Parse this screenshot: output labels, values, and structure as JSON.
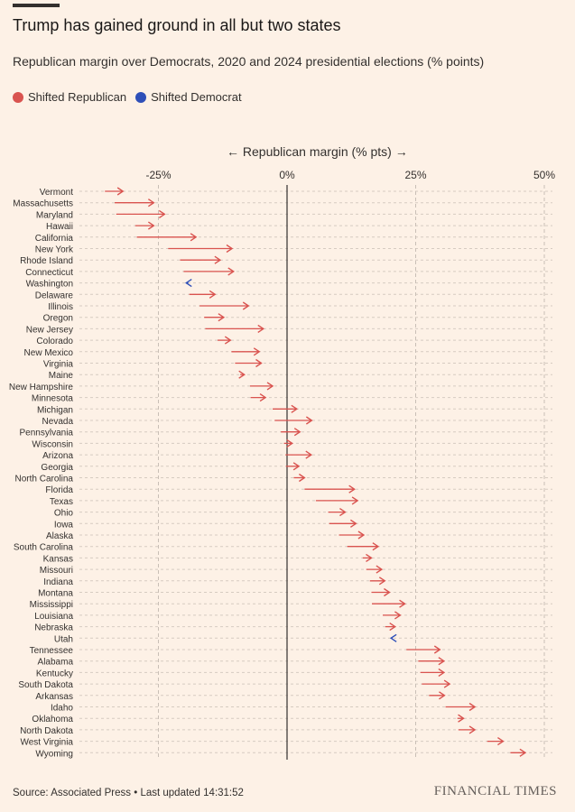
{
  "header": {
    "title": "Trump has gained ground in all but two states",
    "subtitle": "Republican margin over Democrats, 2020 and 2024 presidential elections (% points)"
  },
  "legend": {
    "items": [
      {
        "label": "Shifted Republican",
        "color": "#d9534f"
      },
      {
        "label": "Shifted Democrat",
        "color": "#2e4fb8"
      }
    ]
  },
  "footer": {
    "source": "Source: Associated Press • Last updated 14:31:52",
    "brand": "FINANCIAL TIMES"
  },
  "chart_data": {
    "type": "arrow",
    "axis_title": "← Republican margin (% pts) →",
    "xlim": [
      -32,
      51
    ],
    "ticks": [
      -25,
      0,
      25,
      50
    ],
    "tick_labels": [
      "-25%",
      "0%",
      "25%",
      "50%"
    ],
    "grid": true,
    "colors": {
      "republican": "#d9534f",
      "democrat": "#2e4fb8"
    },
    "series_names": [
      "2020",
      "2024"
    ],
    "states": [
      {
        "name": "Vermont",
        "y2020": -35.4,
        "y2024": -31.9
      },
      {
        "name": "Massachusetts",
        "y2020": -33.5,
        "y2024": -25.9
      },
      {
        "name": "Maryland",
        "y2020": -33.2,
        "y2024": -23.8
      },
      {
        "name": "Hawaii",
        "y2020": -29.5,
        "y2024": -25.9
      },
      {
        "name": "California",
        "y2020": -29.2,
        "y2024": -17.7
      },
      {
        "name": "New York",
        "y2020": -23.1,
        "y2024": -10.7
      },
      {
        "name": "Rhode Island",
        "y2020": -20.8,
        "y2024": -13.0
      },
      {
        "name": "Connecticut",
        "y2020": -20.1,
        "y2024": -10.4
      },
      {
        "name": "Washington",
        "y2020": -19.2,
        "y2024": -19.6
      },
      {
        "name": "Delaware",
        "y2020": -19.0,
        "y2024": -14.0
      },
      {
        "name": "Illinois",
        "y2020": -17.0,
        "y2024": -7.5
      },
      {
        "name": "Oregon",
        "y2020": -16.1,
        "y2024": -12.3
      },
      {
        "name": "New Jersey",
        "y2020": -15.9,
        "y2024": -4.6
      },
      {
        "name": "Colorado",
        "y2020": -13.5,
        "y2024": -11.0
      },
      {
        "name": "New Mexico",
        "y2020": -10.8,
        "y2024": -5.4
      },
      {
        "name": "Virginia",
        "y2020": -10.1,
        "y2024": -5.0
      },
      {
        "name": "Maine",
        "y2020": -9.1,
        "y2024": -8.3
      },
      {
        "name": "New Hampshire",
        "y2020": -7.2,
        "y2024": -2.8
      },
      {
        "name": "Minnesota",
        "y2020": -7.1,
        "y2024": -4.2
      },
      {
        "name": "Michigan",
        "y2020": -2.8,
        "y2024": 1.9
      },
      {
        "name": "Nevada",
        "y2020": -2.4,
        "y2024": 4.8
      },
      {
        "name": "Pennsylvania",
        "y2020": -1.2,
        "y2024": 2.5
      },
      {
        "name": "Wisconsin",
        "y2020": -0.6,
        "y2024": 1.0
      },
      {
        "name": "Arizona",
        "y2020": -0.3,
        "y2024": 4.7
      },
      {
        "name": "Georgia",
        "y2020": -0.2,
        "y2024": 2.3
      },
      {
        "name": "North Carolina",
        "y2020": 1.3,
        "y2024": 3.4
      },
      {
        "name": "Florida",
        "y2020": 3.4,
        "y2024": 13.1
      },
      {
        "name": "Texas",
        "y2020": 5.6,
        "y2024": 13.7
      },
      {
        "name": "Ohio",
        "y2020": 8.0,
        "y2024": 11.3
      },
      {
        "name": "Iowa",
        "y2020": 8.2,
        "y2024": 13.4
      },
      {
        "name": "Alaska",
        "y2020": 10.1,
        "y2024": 14.9
      },
      {
        "name": "South Carolina",
        "y2020": 11.7,
        "y2024": 17.7
      },
      {
        "name": "Kansas",
        "y2020": 14.7,
        "y2024": 16.4
      },
      {
        "name": "Missouri",
        "y2020": 15.4,
        "y2024": 18.4
      },
      {
        "name": "Indiana",
        "y2020": 16.1,
        "y2024": 19.0
      },
      {
        "name": "Montana",
        "y2020": 16.4,
        "y2024": 19.9
      },
      {
        "name": "Mississippi",
        "y2020": 16.5,
        "y2024": 22.9
      },
      {
        "name": "Louisiana",
        "y2020": 18.6,
        "y2024": 22.0
      },
      {
        "name": "Nebraska",
        "y2020": 19.1,
        "y2024": 21.0
      },
      {
        "name": "Utah",
        "y2020": 20.5,
        "y2024": 20.2
      },
      {
        "name": "Tennessee",
        "y2020": 23.2,
        "y2024": 29.7
      },
      {
        "name": "Alabama",
        "y2020": 25.5,
        "y2024": 30.5
      },
      {
        "name": "Kentucky",
        "y2020": 25.9,
        "y2024": 30.5
      },
      {
        "name": "South Dakota",
        "y2020": 26.2,
        "y2024": 31.6
      },
      {
        "name": "Arkansas",
        "y2020": 27.6,
        "y2024": 30.6
      },
      {
        "name": "Idaho",
        "y2020": 30.8,
        "y2024": 36.5
      },
      {
        "name": "Oklahoma",
        "y2020": 33.1,
        "y2024": 34.3
      },
      {
        "name": "North Dakota",
        "y2020": 33.3,
        "y2024": 36.5
      },
      {
        "name": "West Virginia",
        "y2020": 38.9,
        "y2024": 42.0
      },
      {
        "name": "Wyoming",
        "y2020": 43.4,
        "y2024": 46.3
      }
    ]
  }
}
